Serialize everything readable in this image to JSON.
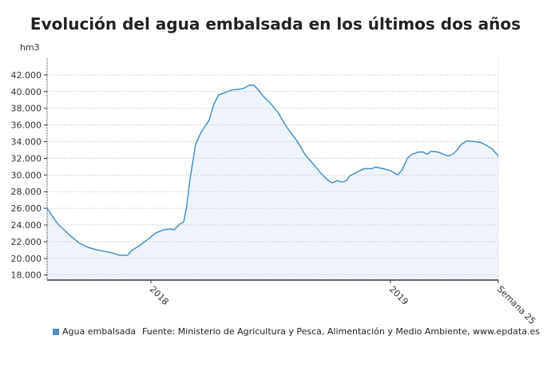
{
  "chart_data": {
    "type": "area",
    "title": "Evolución del agua embalsada en los últimos dos años",
    "ylabel": "hm3",
    "xlabel": "",
    "ylim": [
      17400,
      44000
    ],
    "xlim": [
      2017.567,
      2019.45
    ],
    "grid": true,
    "legend_position": "bottom-left",
    "line_color": "#4a90c4",
    "fill_color": "#eef4fa",
    "y_ticks": [
      {
        "value": 18000,
        "label": "18.000"
      },
      {
        "value": 20000,
        "label": "20.000"
      },
      {
        "value": 22000,
        "label": "22.000"
      },
      {
        "value": 24000,
        "label": "24.000"
      },
      {
        "value": 26000,
        "label": "26.000"
      },
      {
        "value": 28000,
        "label": "28.000"
      },
      {
        "value": 30000,
        "label": "30.000"
      },
      {
        "value": 32000,
        "label": "32.000"
      },
      {
        "value": 34000,
        "label": "34.000"
      },
      {
        "value": 36000,
        "label": "36.000"
      },
      {
        "value": 38000,
        "label": "38.000"
      },
      {
        "value": 40000,
        "label": "40.000"
      },
      {
        "value": 42000,
        "label": "42.000"
      }
    ],
    "x_ticks": [
      {
        "value": 2018.0,
        "label": "2018"
      },
      {
        "value": 2019.0,
        "label": "2019"
      },
      {
        "value": 2019.45,
        "label": "Semana 25"
      }
    ],
    "series": [
      {
        "name": "Agua embalsada",
        "points": [
          [
            2017.567,
            26000
          ],
          [
            2017.587,
            25140
          ],
          [
            2017.61,
            24190
          ],
          [
            2017.637,
            23430
          ],
          [
            2017.67,
            22570
          ],
          [
            2017.703,
            21810
          ],
          [
            2017.737,
            21330
          ],
          [
            2017.77,
            21050
          ],
          [
            2017.803,
            20860
          ],
          [
            2017.837,
            20670
          ],
          [
            2017.87,
            20380
          ],
          [
            2017.903,
            20380
          ],
          [
            2017.92,
            20950
          ],
          [
            2017.953,
            21520
          ],
          [
            2017.987,
            22280
          ],
          [
            2018.02,
            23050
          ],
          [
            2018.053,
            23430
          ],
          [
            2018.08,
            23520
          ],
          [
            2018.097,
            23430
          ],
          [
            2018.12,
            24100
          ],
          [
            2018.137,
            24380
          ],
          [
            2018.15,
            26290
          ],
          [
            2018.163,
            29430
          ],
          [
            2018.187,
            33710
          ],
          [
            2018.21,
            35140
          ],
          [
            2018.243,
            36570
          ],
          [
            2018.263,
            38480
          ],
          [
            2018.283,
            39620
          ],
          [
            2018.303,
            39810
          ],
          [
            2018.337,
            40190
          ],
          [
            2018.37,
            40290
          ],
          [
            2018.387,
            40380
          ],
          [
            2018.41,
            40760
          ],
          [
            2018.43,
            40760
          ],
          [
            2018.443,
            40380
          ],
          [
            2018.47,
            39430
          ],
          [
            2018.503,
            38480
          ],
          [
            2018.53,
            37520
          ],
          [
            2018.553,
            36380
          ],
          [
            2018.577,
            35330
          ],
          [
            2018.61,
            34090
          ],
          [
            2018.643,
            32480
          ],
          [
            2018.677,
            31330
          ],
          [
            2018.71,
            30190
          ],
          [
            2018.737,
            29430
          ],
          [
            2018.757,
            29050
          ],
          [
            2018.777,
            29330
          ],
          [
            2018.797,
            29140
          ],
          [
            2018.817,
            29330
          ],
          [
            2018.83,
            29900
          ],
          [
            2018.863,
            30380
          ],
          [
            2018.89,
            30760
          ],
          [
            2018.923,
            30760
          ],
          [
            2018.937,
            30950
          ],
          [
            2018.97,
            30760
          ],
          [
            2019.003,
            30480
          ],
          [
            2019.03,
            30000
          ],
          [
            2019.05,
            30670
          ],
          [
            2019.07,
            32000
          ],
          [
            2019.09,
            32480
          ],
          [
            2019.117,
            32760
          ],
          [
            2019.137,
            32760
          ],
          [
            2019.153,
            32480
          ],
          [
            2019.17,
            32860
          ],
          [
            2019.197,
            32760
          ],
          [
            2019.223,
            32480
          ],
          [
            2019.243,
            32280
          ],
          [
            2019.263,
            32570
          ],
          [
            2019.277,
            32950
          ],
          [
            2019.297,
            33710
          ],
          [
            2019.32,
            34090
          ],
          [
            2019.353,
            34000
          ],
          [
            2019.377,
            33900
          ],
          [
            2019.403,
            33520
          ],
          [
            2019.427,
            33050
          ],
          [
            2019.45,
            32280
          ]
        ]
      }
    ]
  },
  "legend": {
    "label": "Agua embalsada"
  },
  "source": "Fuente: Ministerio de Agricultura y Pesca, Alimentación y Medio Ambiente, www.epdata.es"
}
